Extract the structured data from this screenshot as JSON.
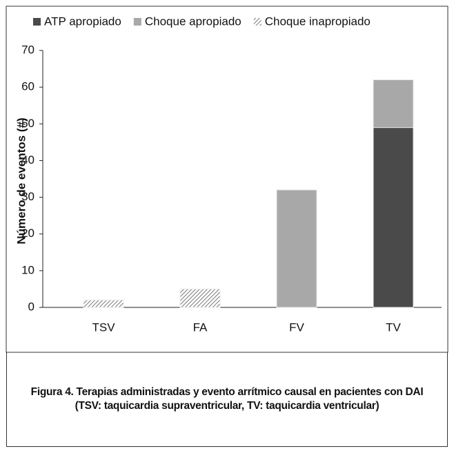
{
  "chart_data": {
    "type": "stacked_bar",
    "y_label": "Número de eventos (#)",
    "caption": "Figura 4. Terapias administradas y evento arrítmico causal en pacientes con DAI (TSV: taquicardia supraventricular, TV: taquicardia ventricular)",
    "categories": [
      "TSV",
      "FA",
      "FV",
      "TV"
    ],
    "series": [
      {
        "name": "ATP apropiado",
        "color": "#4a4a4a",
        "values": [
          0,
          0,
          0,
          49
        ]
      },
      {
        "name": "Choque apropiado",
        "color": "#a8a8a8",
        "values": [
          0,
          0,
          32,
          13
        ]
      },
      {
        "name": "Choque inapropiado",
        "color": "hatch",
        "values": [
          2,
          5,
          0,
          0
        ]
      }
    ],
    "ylim": [
      0,
      70
    ],
    "yticks": [
      0,
      10,
      20,
      30,
      40,
      50,
      60,
      70
    ],
    "grid": false
  }
}
